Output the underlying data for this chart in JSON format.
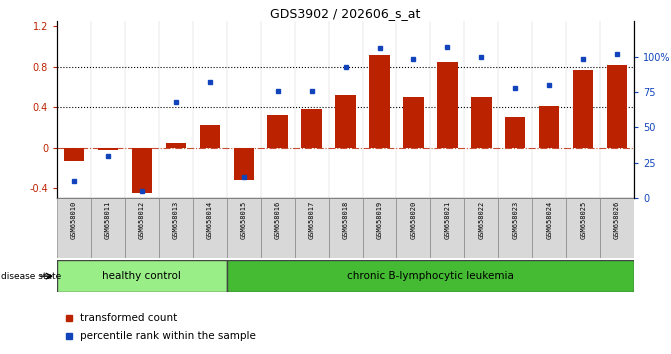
{
  "title": "GDS3902 / 202606_s_at",
  "categories": [
    "GSM658010",
    "GSM658011",
    "GSM658012",
    "GSM658013",
    "GSM658014",
    "GSM658015",
    "GSM658016",
    "GSM658017",
    "GSM658018",
    "GSM658019",
    "GSM658020",
    "GSM658021",
    "GSM658022",
    "GSM658023",
    "GSM658024",
    "GSM658025",
    "GSM658026"
  ],
  "red_values": [
    -0.13,
    -0.02,
    -0.45,
    0.05,
    0.22,
    -0.32,
    0.32,
    0.38,
    0.52,
    0.92,
    0.5,
    0.85,
    0.5,
    0.3,
    0.41,
    0.77,
    0.82
  ],
  "blue_percentile": [
    12,
    30,
    5,
    68,
    82,
    15,
    76,
    76,
    93,
    106,
    98,
    107,
    100,
    78,
    80,
    98,
    102
  ],
  "healthy_count": 5,
  "disease_count": 12,
  "bar_color": "#bb2200",
  "dot_color": "#1144bb",
  "healthy_color": "#99ee88",
  "leukemia_color": "#44bb33",
  "ylim_left": [
    -0.5,
    1.25
  ],
  "ylim_right": [
    0,
    125
  ],
  "yticks_left": [
    -0.4,
    0.0,
    0.4,
    0.8,
    1.2
  ],
  "yticks_right": [
    0,
    25,
    50,
    75,
    100
  ],
  "ytick_labels_left": [
    "-0.4",
    "0",
    "0.4",
    "0.8",
    "1.2"
  ],
  "ytick_labels_right": [
    "0",
    "25",
    "50",
    "75",
    "100%"
  ],
  "dotted_hlines": [
    0.4,
    0.8
  ],
  "legend_items": [
    "transformed count",
    "percentile rank within the sample"
  ],
  "disease_state_label": "disease state",
  "healthy_label": "healthy control",
  "leukemia_label": "chronic B-lymphocytic leukemia"
}
